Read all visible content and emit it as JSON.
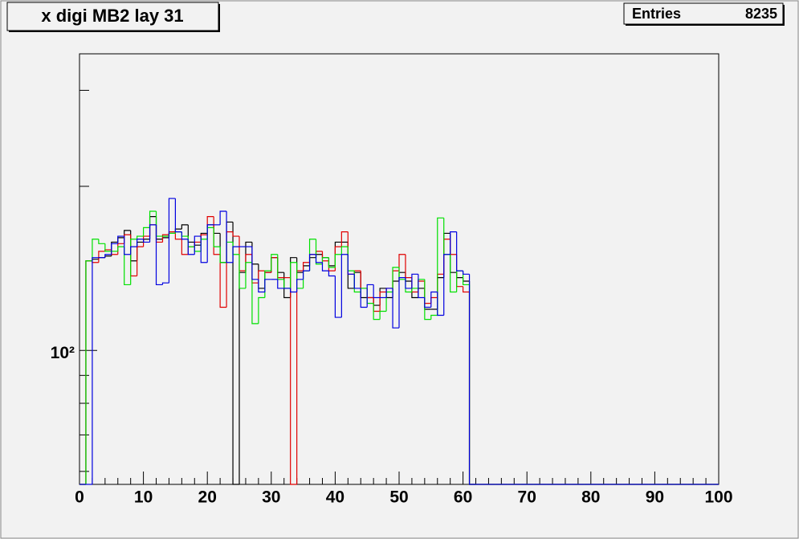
{
  "chart_data": {
    "type": "histogram",
    "title": "x digi MB2 lay 31",
    "stats": {
      "label": "Entries",
      "value": 8235
    },
    "log_y": true,
    "xlim": [
      0,
      100
    ],
    "xticks": [
      0,
      10,
      20,
      30,
      40,
      50,
      60,
      70,
      80,
      90,
      100
    ],
    "ylim": [
      56.8,
      350
    ],
    "yticks": [
      {
        "value": 100,
        "label": "10²"
      }
    ],
    "yminor_ticks": [
      60,
      70,
      80,
      90,
      200,
      300
    ],
    "series": [
      {
        "name": "black",
        "color": "#000000",
        "values": [
          0,
          146,
          147,
          148,
          149,
          158,
          161,
          166,
          146,
          158,
          160,
          176,
          160,
          161,
          164,
          167,
          170,
          158,
          156,
          164,
          170,
          164,
          145,
          172,
          0,
          139,
          158,
          144,
          130,
          139,
          148,
          139,
          125,
          148,
          139,
          143,
          148,
          150,
          148,
          143,
          158,
          158,
          130,
          139,
          125,
          125,
          121,
          130,
          125,
          134,
          139,
          134,
          125,
          130,
          119,
          119,
          136,
          164,
          139,
          136,
          134,
          0,
          0,
          0,
          0,
          0,
          0,
          0,
          0,
          0,
          0,
          0,
          0,
          0,
          0,
          0,
          0,
          0,
          0,
          0,
          0,
          0,
          0,
          0,
          0,
          0,
          0,
          0,
          0,
          0,
          0,
          0,
          0,
          0,
          0,
          0,
          0,
          0,
          0,
          0
        ]
      },
      {
        "name": "red",
        "color": "#e00000",
        "values": [
          0,
          146,
          145,
          152,
          153,
          150,
          157,
          163,
          137,
          155,
          162,
          170,
          158,
          163,
          165,
          160,
          150,
          155,
          158,
          163,
          176,
          150,
          120,
          165,
          162,
          140,
          150,
          133,
          140,
          139,
          148,
          136,
          136,
          0,
          140,
          145,
          150,
          152,
          146,
          140,
          155,
          165,
          138,
          140,
          130,
          125,
          118,
          128,
          130,
          140,
          150,
          136,
          128,
          134,
          122,
          125,
          138,
          160,
          150,
          131,
          128,
          0,
          0,
          0,
          0,
          0,
          0,
          0,
          0,
          0,
          0,
          0,
          0,
          0,
          0,
          0,
          0,
          0,
          0,
          0,
          0,
          0,
          0,
          0,
          0,
          0,
          0,
          0,
          0,
          0,
          0,
          0,
          0,
          0,
          0,
          0,
          0,
          0,
          0,
          0
        ]
      },
      {
        "name": "green",
        "color": "#00e000",
        "values": [
          0,
          146,
          160,
          157,
          152,
          152,
          155,
          132,
          160,
          162,
          168,
          180,
          162,
          162,
          164,
          165,
          162,
          155,
          152,
          160,
          168,
          155,
          145,
          158,
          150,
          130,
          145,
          112,
          125,
          140,
          150,
          135,
          130,
          145,
          130,
          140,
          160,
          144,
          148,
          142,
          150,
          155,
          140,
          128,
          130,
          122,
          114,
          118,
          128,
          142,
          135,
          128,
          130,
          135,
          114,
          116,
          175,
          150,
          128,
          140,
          132,
          0,
          0,
          0,
          0,
          0,
          0,
          0,
          0,
          0,
          0,
          0,
          0,
          0,
          0,
          0,
          0,
          0,
          0,
          0,
          0,
          0,
          0,
          0,
          0,
          0,
          0,
          0,
          0,
          0,
          0,
          0,
          0,
          0,
          0,
          0,
          0,
          0,
          0,
          0
        ]
      },
      {
        "name": "blue",
        "color": "#0000e0",
        "values": [
          0,
          0,
          148,
          148,
          150,
          157,
          162,
          150,
          155,
          160,
          158,
          170,
          132,
          133,
          190,
          165,
          160,
          150,
          162,
          145,
          170,
          170,
          180,
          145,
          155,
          155,
          155,
          135,
          128,
          135,
          135,
          130,
          130,
          128,
          135,
          140,
          150,
          145,
          140,
          137,
          115,
          150,
          138,
          130,
          120,
          132,
          125,
          125,
          130,
          110,
          136,
          130,
          138,
          125,
          120,
          128,
          116,
          150,
          165,
          140,
          138,
          0,
          0,
          0,
          0,
          0,
          0,
          0,
          0,
          0,
          0,
          0,
          0,
          0,
          0,
          0,
          0,
          0,
          0,
          0,
          0,
          0,
          0,
          0,
          0,
          0,
          0,
          0,
          0,
          0,
          0,
          0,
          0,
          0,
          0,
          0,
          0,
          0,
          0,
          0
        ]
      }
    ]
  }
}
